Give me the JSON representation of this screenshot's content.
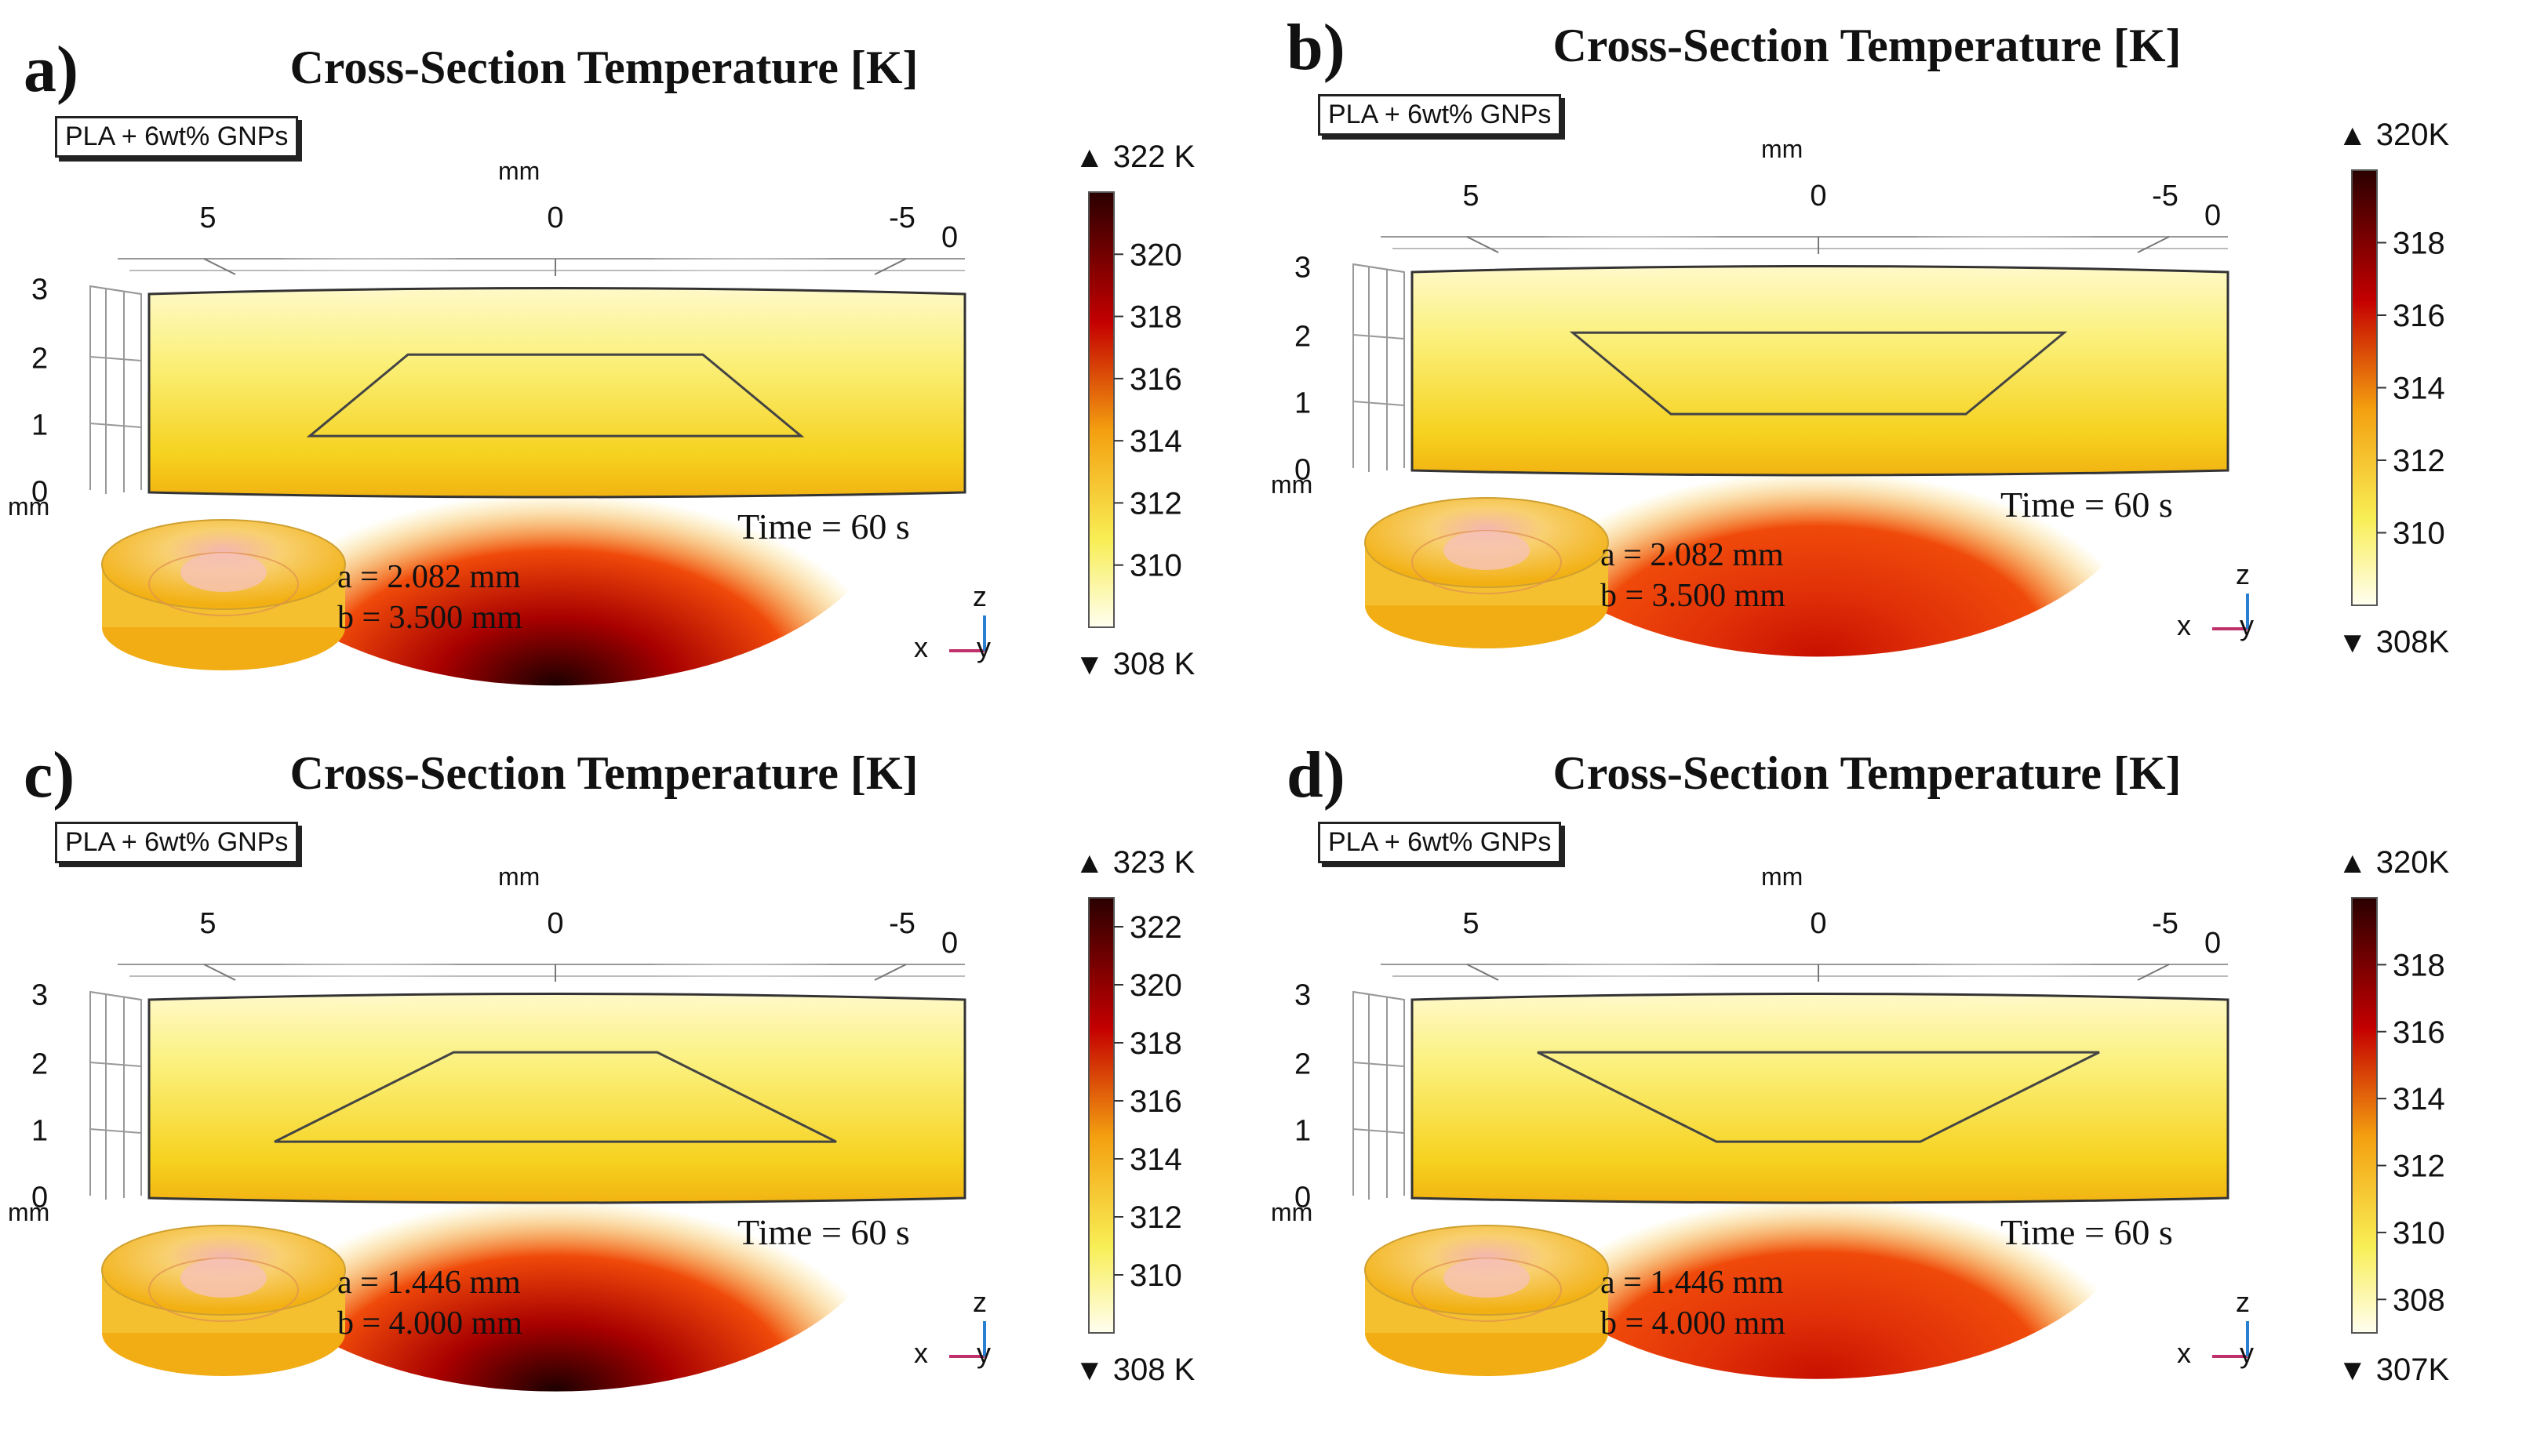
{
  "shared": {
    "title": "Cross-Section Temperature [K]",
    "material": "PLA + 6wt% GNPs",
    "x_unit": "mm",
    "y_unit": "mm",
    "time_label": "Time = 60 s",
    "axis_x": "x",
    "axis_y": "y",
    "axis_z": "z"
  },
  "chart_data": [
    {
      "type": "heatmap",
      "panel": "a)",
      "title": "Cross-Section Temperature [K]",
      "xlabel": "mm",
      "ylabel": "mm",
      "x_ticks": [
        "5",
        "0",
        "-5"
      ],
      "y_ticks": [
        "0",
        "1",
        "2",
        "3"
      ],
      "depth_tick": "0",
      "xlim": [
        6.4,
        -6.4
      ],
      "ylim": [
        0,
        3
      ],
      "time": "Time = 60 s",
      "params": [
        "a = 2.082 mm",
        "b = 3.500 mm"
      ],
      "colorbar": {
        "max_label": "322 K",
        "min_label": "308 K",
        "min": 308,
        "max": 322,
        "ticks": [
          "320",
          "318",
          "316",
          "314",
          "312",
          "310"
        ],
        "tick_values": [
          320,
          318,
          316,
          314,
          312,
          310
        ]
      },
      "hotspot_peak_K": 321.5,
      "trapezoid": {
        "top_half_width_mm": 2.1,
        "bottom_half_width_mm": 3.5,
        "top_y_mm": 2.08,
        "bottom_y_mm": 0.85
      }
    },
    {
      "type": "heatmap",
      "panel": "b)",
      "title": "Cross-Section Temperature [K]",
      "xlabel": "mm",
      "ylabel": "mm",
      "x_ticks": [
        "5",
        "0",
        "-5"
      ],
      "y_ticks": [
        "0",
        "1",
        "2",
        "3"
      ],
      "depth_tick": "0",
      "xlim": [
        6.4,
        -6.4
      ],
      "ylim": [
        0,
        3
      ],
      "time": "Time = 60 s",
      "params": [
        "a = 2.082 mm",
        "b = 3.500 mm"
      ],
      "colorbar": {
        "max_label": "320K",
        "min_label": "308K",
        "min": 308,
        "max": 320,
        "ticks": [
          "318",
          "316",
          "314",
          "312",
          "310"
        ],
        "tick_values": [
          318,
          316,
          314,
          312,
          310
        ]
      },
      "hotspot_peak_K": 318.5,
      "trapezoid": {
        "top_half_width_mm": 3.5,
        "bottom_half_width_mm": 2.1,
        "top_y_mm": 2.08,
        "bottom_y_mm": 0.85
      }
    },
    {
      "type": "heatmap",
      "panel": "c)",
      "title": "Cross-Section Temperature [K]",
      "xlabel": "mm",
      "ylabel": "mm",
      "x_ticks": [
        "5",
        "0",
        "-5"
      ],
      "y_ticks": [
        "0",
        "1",
        "2",
        "3"
      ],
      "depth_tick": "0",
      "xlim": [
        6.4,
        -6.4
      ],
      "ylim": [
        0,
        3
      ],
      "time": "Time = 60 s",
      "params": [
        "a = 1.446 mm",
        "b = 4.000 mm"
      ],
      "colorbar": {
        "max_label": "323 K",
        "min_label": "308 K",
        "min": 308,
        "max": 323,
        "ticks": [
          "322",
          "320",
          "318",
          "316",
          "314",
          "312",
          "310"
        ],
        "tick_values": [
          322,
          320,
          318,
          316,
          314,
          312,
          310
        ]
      },
      "hotspot_peak_K": 322.5,
      "trapezoid": {
        "top_half_width_mm": 1.45,
        "bottom_half_width_mm": 4.0,
        "top_y_mm": 2.2,
        "bottom_y_mm": 0.85
      }
    },
    {
      "type": "heatmap",
      "panel": "d)",
      "title": "Cross-Section Temperature [K]",
      "xlabel": "mm",
      "ylabel": "mm",
      "x_ticks": [
        "5",
        "0",
        "-5"
      ],
      "y_ticks": [
        "0",
        "1",
        "2",
        "3"
      ],
      "depth_tick": "0",
      "xlim": [
        6.4,
        -6.4
      ],
      "ylim": [
        0,
        3
      ],
      "time": "Time = 60 s",
      "params": [
        "a = 1.446 mm",
        "b = 4.000 mm"
      ],
      "colorbar": {
        "max_label": "320K",
        "min_label": "307K",
        "min": 307,
        "max": 320,
        "ticks": [
          "318",
          "316",
          "314",
          "312",
          "310",
          "308"
        ],
        "tick_values": [
          318,
          316,
          314,
          312,
          310,
          308
        ]
      },
      "hotspot_peak_K": 317.5,
      "trapezoid": {
        "top_half_width_mm": 4.0,
        "bottom_half_width_mm": 1.45,
        "top_y_mm": 2.2,
        "bottom_y_mm": 0.85
      }
    }
  ]
}
